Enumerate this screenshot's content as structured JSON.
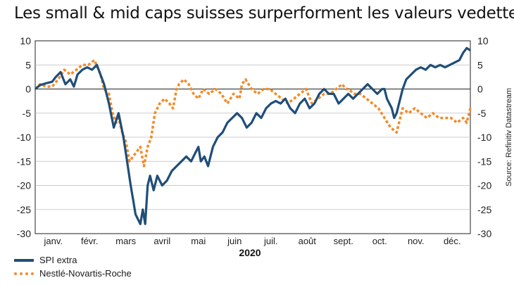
{
  "title": "Les small & mid caps suisses surperforment les valeurs vedettes",
  "source": "Source: Refinitiv Datastream",
  "chart_data": {
    "type": "line",
    "year_label": "2020",
    "months": [
      "janv.",
      "févr.",
      "mars",
      "avril",
      "mai",
      "juin",
      "juil.",
      "août",
      "sept.",
      "oct.",
      "nov.",
      "déc."
    ],
    "ylim": [
      -30,
      10
    ],
    "yticks": [
      "10",
      "5",
      "0",
      "-5",
      "-10",
      "-15",
      "-20",
      "-25",
      "-30"
    ],
    "xrange": [
      1,
      361
    ],
    "series": [
      {
        "name": "SPI extra",
        "color": "#1f4e79",
        "style": "solid",
        "x": [
          1,
          5,
          10,
          15,
          18,
          22,
          26,
          30,
          33,
          36,
          40,
          44,
          48,
          52,
          55,
          58,
          62,
          66,
          70,
          74,
          77,
          80,
          82,
          84,
          86,
          88,
          90,
          92,
          94,
          96,
          99,
          102,
          106,
          110,
          114,
          118,
          122,
          126,
          130,
          134,
          136,
          138,
          141,
          144,
          148,
          152,
          156,
          160,
          164,
          168,
          172,
          176,
          180,
          184,
          188,
          192,
          196,
          200,
          204,
          208,
          212,
          216,
          220,
          224,
          228,
          232,
          236,
          240,
          244,
          248,
          252,
          256,
          260,
          264,
          268,
          272,
          276,
          280,
          284,
          288,
          290,
          292,
          294,
          296,
          298,
          300,
          302,
          305,
          308,
          312,
          316,
          320,
          324,
          328,
          332,
          336,
          340,
          344,
          348,
          352,
          355,
          358,
          361
        ],
        "y": [
          0,
          0.8,
          1.2,
          1.5,
          2.5,
          3.5,
          1,
          2,
          0.5,
          3,
          4,
          4.5,
          4,
          5,
          3,
          1,
          -3,
          -8,
          -5,
          -10,
          -15,
          -20,
          -23,
          -26,
          -27,
          -28,
          -25,
          -28,
          -20,
          -18,
          -21,
          -18,
          -20,
          -19,
          -17,
          -16,
          -15,
          -14,
          -15,
          -13,
          -12,
          -15,
          -14,
          -16,
          -12,
          -10,
          -9,
          -7,
          -6,
          -5,
          -6,
          -8,
          -7,
          -5,
          -6,
          -4,
          -3,
          -2.5,
          -3,
          -2,
          -4,
          -5,
          -3,
          -2,
          -4,
          -3,
          -1,
          0,
          -1,
          -1,
          -3,
          -2,
          -1,
          -2,
          -1,
          0,
          1,
          0,
          -1,
          0,
          0,
          -2,
          -3,
          -4,
          -6,
          -5,
          -3,
          0,
          2,
          3,
          4,
          4.5,
          4,
          5,
          4.5,
          5,
          4.5,
          5,
          5.5,
          6,
          7.5,
          8.5,
          8
        ]
      },
      {
        "name": "Nestlé-Novartis-Roche",
        "color": "#f28c28",
        "style": "dotted",
        "x": [
          1,
          5,
          10,
          15,
          20,
          25,
          30,
          35,
          40,
          45,
          50,
          55,
          58,
          62,
          65,
          68,
          70,
          73,
          76,
          79,
          82,
          85,
          88,
          91,
          94,
          97,
          100,
          104,
          108,
          112,
          115,
          118,
          120,
          124,
          128,
          132,
          136,
          140,
          145,
          150,
          155,
          160,
          165,
          170,
          172,
          175,
          180,
          185,
          190,
          195,
          200,
          205,
          210,
          215,
          220,
          225,
          230,
          235,
          240,
          245,
          250,
          255,
          258,
          260,
          265,
          270,
          275,
          280,
          285,
          290,
          295,
          300,
          303,
          305,
          310,
          315,
          320,
          325,
          330,
          335,
          340,
          345,
          350,
          355,
          358,
          361
        ],
        "y": [
          0,
          1,
          0.5,
          0.5,
          2,
          4,
          3,
          4,
          5,
          5,
          6,
          3,
          0,
          -1,
          -5,
          -7,
          -6,
          -9,
          -11,
          -15,
          -14,
          -13,
          -12,
          -16,
          -12,
          -10,
          -5,
          -3,
          -2,
          -3,
          -4,
          0,
          1,
          2,
          1,
          -1,
          -2,
          0,
          -1,
          0,
          -1,
          -3,
          -1,
          -2,
          1,
          2,
          0,
          -1,
          0,
          0,
          -1,
          -2,
          -3,
          -2,
          -1,
          0,
          -3,
          -2,
          -1,
          -1,
          0,
          1,
          0,
          0,
          -1,
          -1,
          -2,
          -3,
          -4,
          -6,
          -8,
          -9,
          -6,
          -4,
          -5,
          -4,
          -5,
          -6,
          -5,
          -6,
          -6,
          -6,
          -7,
          -6,
          -7,
          -4
        ]
      }
    ]
  }
}
